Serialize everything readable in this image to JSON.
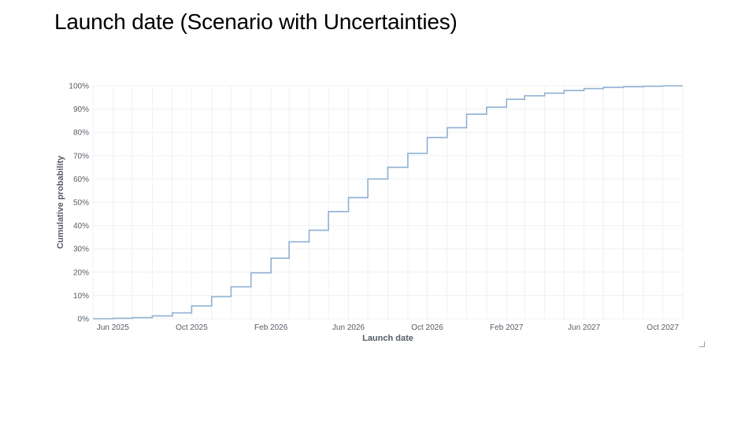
{
  "slide": {
    "title": "Launch date (Scenario with Uncertainties)"
  },
  "chart_data": {
    "type": "line",
    "step": true,
    "title": "",
    "xlabel": "Launch date",
    "ylabel": "Cumulative probability",
    "x_ticks": [
      {
        "date": "2025-06-01",
        "label": "Jun 2025"
      },
      {
        "date": "2025-10-01",
        "label": "Oct 2025"
      },
      {
        "date": "2026-02-01",
        "label": "Feb 2026"
      },
      {
        "date": "2026-06-01",
        "label": "Jun 2026"
      },
      {
        "date": "2026-10-01",
        "label": "Oct 2026"
      },
      {
        "date": "2027-02-01",
        "label": "Feb 2027"
      },
      {
        "date": "2027-06-01",
        "label": "Jun 2027"
      },
      {
        "date": "2027-10-01",
        "label": "Oct 2027"
      }
    ],
    "y_ticks": [
      "0%",
      "10%",
      "20%",
      "30%",
      "40%",
      "50%",
      "60%",
      "70%",
      "80%",
      "90%",
      "100%"
    ],
    "xlim": [
      "2025-05-01",
      "2027-11-01"
    ],
    "ylim": [
      0,
      1
    ],
    "grid": true,
    "color": "#8fb0d3",
    "series": [
      {
        "points": [
          [
            "2025-05-01",
            0.0
          ],
          [
            "2025-06-01",
            0.002
          ],
          [
            "2025-07-01",
            0.005
          ],
          [
            "2025-08-01",
            0.012
          ],
          [
            "2025-09-01",
            0.025
          ],
          [
            "2025-10-01",
            0.055
          ],
          [
            "2025-11-01",
            0.095
          ],
          [
            "2025-12-01",
            0.137
          ],
          [
            "2026-01-01",
            0.197
          ],
          [
            "2026-02-01",
            0.26
          ],
          [
            "2026-03-01",
            0.33
          ],
          [
            "2026-04-01",
            0.38
          ],
          [
            "2026-05-01",
            0.46
          ],
          [
            "2026-06-01",
            0.52
          ],
          [
            "2026-07-01",
            0.6
          ],
          [
            "2026-08-01",
            0.65
          ],
          [
            "2026-09-01",
            0.71
          ],
          [
            "2026-10-01",
            0.778
          ],
          [
            "2026-11-01",
            0.82
          ],
          [
            "2026-12-01",
            0.878
          ],
          [
            "2027-01-01",
            0.908
          ],
          [
            "2027-02-01",
            0.942
          ],
          [
            "2027-03-01",
            0.957
          ],
          [
            "2027-04-01",
            0.968
          ],
          [
            "2027-05-01",
            0.98
          ],
          [
            "2027-06-01",
            0.988
          ],
          [
            "2027-07-01",
            0.993
          ],
          [
            "2027-08-01",
            0.996
          ],
          [
            "2027-09-01",
            0.998
          ],
          [
            "2027-10-01",
            1.0
          ],
          [
            "2027-11-01",
            1.0
          ]
        ]
      }
    ]
  }
}
